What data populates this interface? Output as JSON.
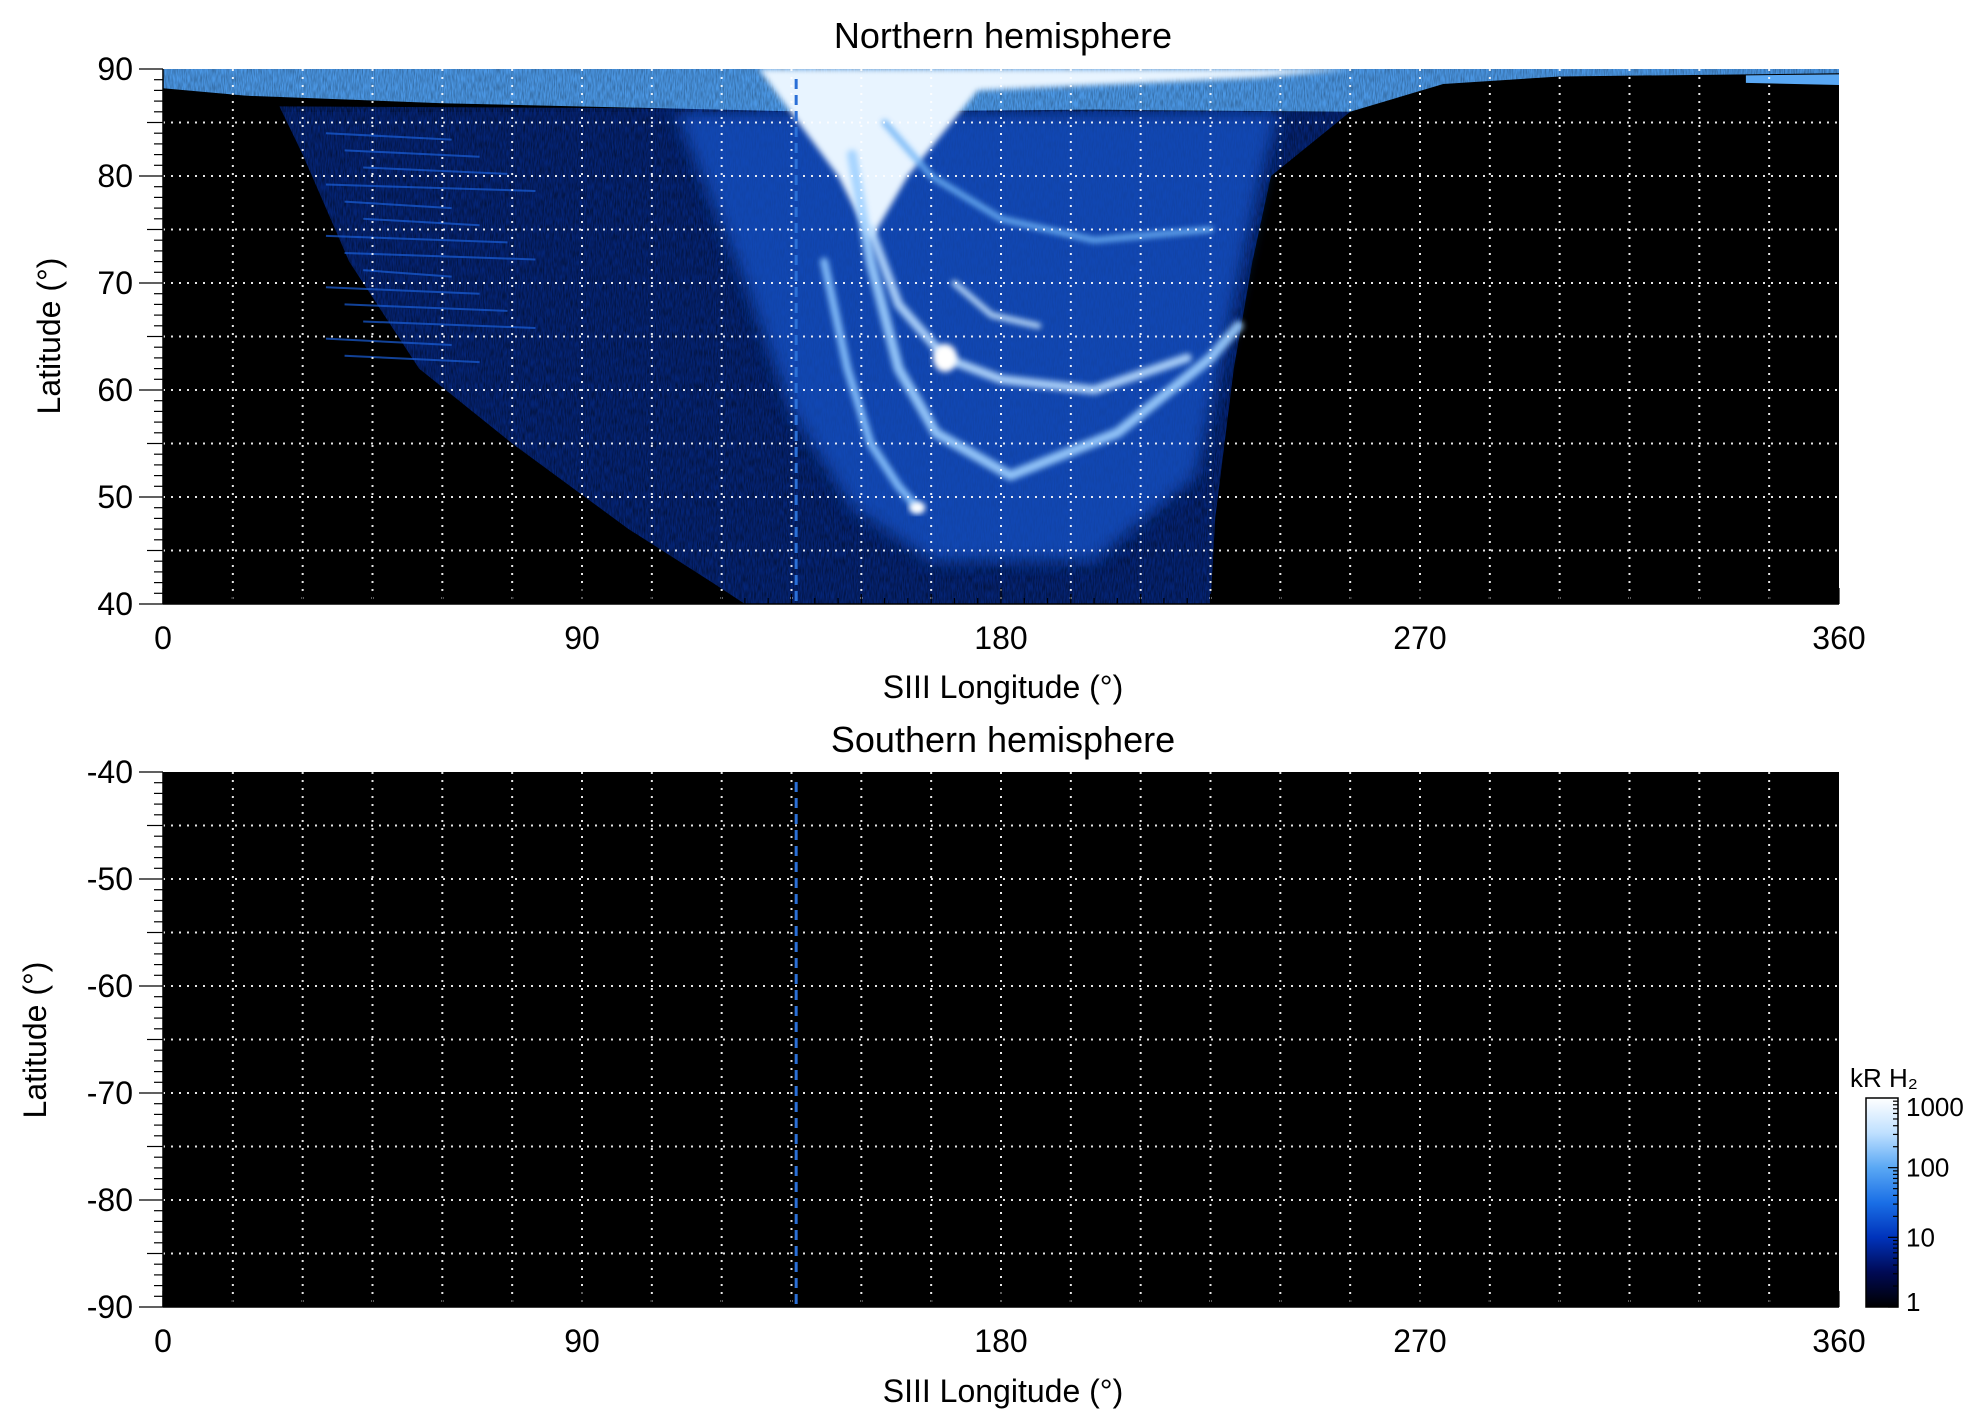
{
  "chart_data": [
    {
      "type": "heatmap",
      "title": "Northern hemisphere",
      "xlabel": "SIII Longitude (°)",
      "ylabel": "Latitude (°)",
      "xlim": [
        0,
        360
      ],
      "ylim": [
        40,
        90
      ],
      "x_ticks": [
        0,
        90,
        180,
        270,
        360
      ],
      "x_tick_labels": [
        "0",
        "90",
        "180",
        "270",
        "360"
      ],
      "y_ticks": [
        40,
        50,
        60,
        70,
        80,
        90
      ],
      "y_tick_labels": [
        "40",
        "50",
        "60",
        "70",
        "80",
        "90"
      ],
      "grid": true,
      "grid_x_step": 15,
      "grid_y_step": 5,
      "dashed_marker_longitude": 136,
      "emission_region": {
        "description": "H2 auroral emission mapped in SIII longitude/latitude",
        "coverage_longitude": [
          25,
          255
        ],
        "coverage_latitude_min": 40,
        "polar_cap_latitude": [
          86,
          90
        ],
        "main_oval_peak": {
          "longitude": 168,
          "latitude": 63,
          "kR": 1000
        },
        "bright_spot": {
          "longitude": 162,
          "latitude": 49,
          "kR": 1000
        }
      }
    },
    {
      "type": "heatmap",
      "title": "Southern hemisphere",
      "xlabel": "SIII Longitude (°)",
      "ylabel": "Latitude (°)",
      "xlim": [
        0,
        360
      ],
      "ylim": [
        -90,
        -40
      ],
      "x_ticks": [
        0,
        90,
        180,
        270,
        360
      ],
      "x_tick_labels": [
        "0",
        "90",
        "180",
        "270",
        "360"
      ],
      "y_ticks": [
        -90,
        -80,
        -70,
        -60,
        -50,
        -40
      ],
      "y_tick_labels": [
        "-90",
        "-80",
        "-70",
        "-60",
        "-50",
        "-40"
      ],
      "grid": true,
      "grid_x_step": 15,
      "grid_y_step": 5,
      "dashed_marker_longitude": 136,
      "emission_region": null
    }
  ],
  "colorbar": {
    "label": "kR H₂",
    "scale": "log",
    "range": [
      1,
      1000
    ],
    "ticks": [
      1,
      10,
      100,
      1000
    ],
    "tick_labels": [
      "1",
      "10",
      "100",
      "1000"
    ],
    "colors": [
      "#000000",
      "#000a55",
      "#0033bb",
      "#1a6fe6",
      "#5aa8f4",
      "#bfe0ff",
      "#ffffff"
    ]
  },
  "colors": {
    "background": "#000000",
    "grid": "#ffffff",
    "marker": "#2a6fd6"
  }
}
